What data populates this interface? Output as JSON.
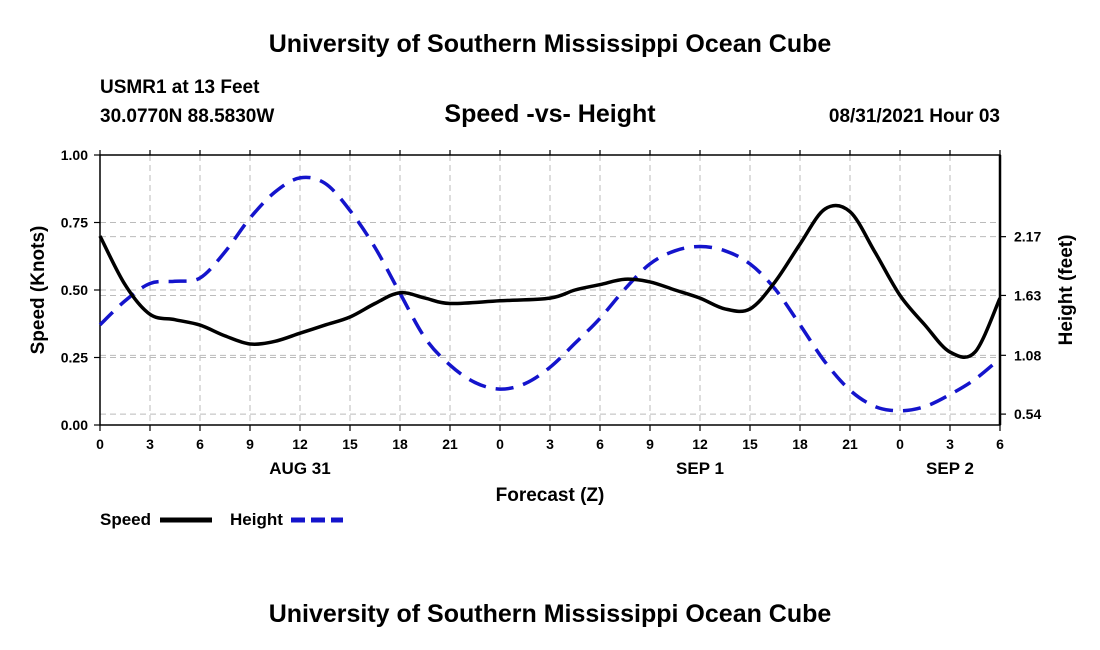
{
  "header": {
    "title": "University of Southern Mississippi Ocean Cube",
    "station": "USMR1 at 13 Feet",
    "coords": "30.0770N  88.5830W",
    "subtitle": "Speed -vs- Height",
    "datetime": "08/31/2021 Hour 03"
  },
  "footer": {
    "title": "University of Southern Mississippi Ocean Cube"
  },
  "colors": {
    "speed": "#000000",
    "height": "#1414cc",
    "grid": "#bbbbbb"
  },
  "chart_data": {
    "type": "line",
    "xlabel": "Forecast (Z)",
    "ylabel": "Speed (Knots)",
    "y2label": "Height (feet)",
    "xlim": [
      0,
      54
    ],
    "ylim": [
      0,
      1.0
    ],
    "y2lim": [
      0.44,
      2.92
    ],
    "xticks": [
      0,
      3,
      6,
      9,
      12,
      15,
      18,
      21,
      24,
      27,
      30,
      33,
      36,
      39,
      42,
      45,
      48,
      51,
      54
    ],
    "xtick_labels": [
      "0",
      "3",
      "6",
      "9",
      "12",
      "15",
      "18",
      "21",
      "0",
      "3",
      "6",
      "9",
      "12",
      "15",
      "18",
      "21",
      "0",
      "3",
      "6"
    ],
    "yticks": [
      0,
      0.25,
      0.5,
      0.75,
      1.0
    ],
    "ytick_labels": [
      "0.00",
      "0.25",
      "0.50",
      "0.75",
      "1.00"
    ],
    "y2ticks": [
      0.54,
      1.08,
      1.63,
      2.17
    ],
    "y2tick_labels": [
      "0.54",
      "1.08",
      "1.63",
      "2.17"
    ],
    "date_labels": [
      {
        "x": 12,
        "label": "AUG 31"
      },
      {
        "x": 36,
        "label": "SEP 1"
      },
      {
        "x": 51,
        "label": "SEP 2"
      }
    ],
    "legend": {
      "position": "bottom-left",
      "entries": [
        "Speed",
        "Height"
      ]
    },
    "series": [
      {
        "name": "Speed",
        "style": "solid",
        "x": [
          0,
          1.5,
          3,
          4.5,
          6,
          7.5,
          9,
          10.5,
          12,
          13.5,
          15,
          16.5,
          18,
          19.5,
          21,
          24,
          27,
          28.5,
          30,
          31.5,
          33,
          34.5,
          36,
          37.5,
          39,
          40.5,
          42,
          43.5,
          45,
          46.5,
          48,
          49.5,
          51,
          52.5,
          54
        ],
        "values": [
          0.7,
          0.52,
          0.41,
          0.39,
          0.37,
          0.33,
          0.3,
          0.31,
          0.34,
          0.37,
          0.4,
          0.45,
          0.49,
          0.47,
          0.45,
          0.46,
          0.47,
          0.5,
          0.52,
          0.54,
          0.53,
          0.5,
          0.47,
          0.43,
          0.43,
          0.53,
          0.67,
          0.8,
          0.79,
          0.64,
          0.48,
          0.37,
          0.27,
          0.27,
          0.47
        ]
      },
      {
        "name": "Height",
        "style": "dashed",
        "x": [
          0,
          1.5,
          3,
          4.5,
          6,
          7.5,
          9,
          10.5,
          12,
          13.5,
          15,
          16.5,
          18,
          19.5,
          21,
          22.5,
          24,
          25.5,
          27,
          28.5,
          30,
          31.5,
          33,
          34.5,
          36,
          37.5,
          39,
          40.5,
          42,
          43.5,
          45,
          46.5,
          48,
          49.5,
          51,
          52.5,
          54
        ],
        "values": [
          1.36,
          1.58,
          1.74,
          1.76,
          1.79,
          2.03,
          2.34,
          2.58,
          2.71,
          2.66,
          2.41,
          2.07,
          1.65,
          1.24,
          0.99,
          0.83,
          0.77,
          0.82,
          0.97,
          1.19,
          1.42,
          1.69,
          1.92,
          2.04,
          2.08,
          2.04,
          1.92,
          1.69,
          1.36,
          1.02,
          0.76,
          0.61,
          0.57,
          0.61,
          0.72,
          0.86,
          1.05
        ]
      }
    ]
  }
}
